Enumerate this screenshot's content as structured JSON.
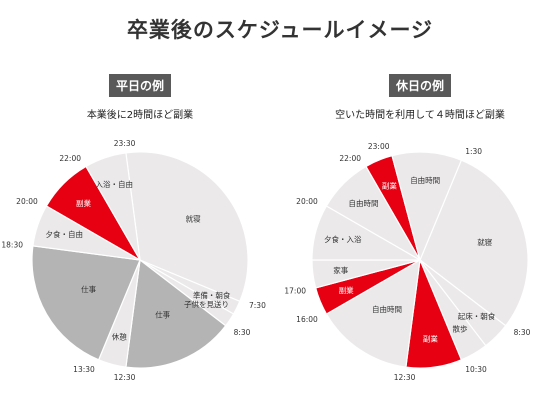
{
  "title": "卒業後のスケジュールイメージ",
  "chart_data": [
    {
      "type": "pie",
      "title": "平日の例",
      "subtitle": "本業後に2時間ほど副業",
      "unit": "hours (24h clock)",
      "segments": [
        {
          "label": "就寝",
          "start": "23:30",
          "end": "07:30",
          "color": "#ebe9ea",
          "text_color": "#333333"
        },
        {
          "label": "準備・朝食",
          "start": "07:30",
          "end": "08:00",
          "color": "#ebe9ea",
          "text_color": "#333333"
        },
        {
          "label": "子供を見送り",
          "start": "08:00",
          "end": "08:30",
          "color": "#ebe9ea",
          "text_color": "#333333"
        },
        {
          "label": "仕事",
          "start": "08:30",
          "end": "12:30",
          "color": "#b4b4b4",
          "text_color": "#333333"
        },
        {
          "label": "休憩",
          "start": "12:30",
          "end": "13:30",
          "color": "#ebe9ea",
          "text_color": "#333333"
        },
        {
          "label": "仕事",
          "start": "13:30",
          "end": "18:30",
          "color": "#b4b4b4",
          "text_color": "#333333"
        },
        {
          "label": "夕食・自由",
          "start": "18:30",
          "end": "20:00",
          "color": "#ebe9ea",
          "text_color": "#333333"
        },
        {
          "label": "副業",
          "start": "20:00",
          "end": "22:00",
          "color": "#e60012",
          "text_color": "#ffffff"
        },
        {
          "label": "入浴・自由",
          "start": "22:00",
          "end": "23:30",
          "color": "#ebe9ea",
          "text_color": "#333333"
        }
      ],
      "time_labels": [
        "23:30",
        "7:30",
        "8:30",
        "12:30",
        "13:30",
        "18:30",
        "20:00",
        "22:00"
      ]
    },
    {
      "type": "pie",
      "title": "休日の例",
      "subtitle": "空いた時間を利用して４時間ほど副業",
      "unit": "hours (24h clock)",
      "segments": [
        {
          "label": "就寝",
          "start": "01:30",
          "end": "08:30",
          "color": "#ebe9ea",
          "text_color": "#333333"
        },
        {
          "label": "起床・朝食",
          "start": "08:30",
          "end": "09:30",
          "color": "#ebe9ea",
          "text_color": "#333333"
        },
        {
          "label": "散歩",
          "start": "09:30",
          "end": "10:30",
          "color": "#ebe9ea",
          "text_color": "#333333"
        },
        {
          "label": "副業",
          "start": "10:30",
          "end": "12:30",
          "color": "#e60012",
          "text_color": "#ffffff"
        },
        {
          "label": "自由時間",
          "start": "12:30",
          "end": "16:00",
          "color": "#ebe9ea",
          "text_color": "#333333"
        },
        {
          "label": "副業",
          "start": "16:00",
          "end": "17:00",
          "color": "#e60012",
          "text_color": "#ffffff"
        },
        {
          "label": "家事",
          "start": "17:00",
          "end": "18:00",
          "color": "#ebe9ea",
          "text_color": "#333333"
        },
        {
          "label": "夕食・入浴",
          "start": "18:00",
          "end": "20:00",
          "color": "#ebe9ea",
          "text_color": "#333333"
        },
        {
          "label": "自由時間",
          "start": "20:00",
          "end": "22:00",
          "color": "#ebe9ea",
          "text_color": "#333333"
        },
        {
          "label": "副業",
          "start": "22:00",
          "end": "23:00",
          "color": "#e60012",
          "text_color": "#ffffff"
        },
        {
          "label": "自由時間",
          "start": "23:00",
          "end": "01:30",
          "color": "#ebe9ea",
          "text_color": "#333333"
        }
      ],
      "time_labels": [
        "1:30",
        "8:30",
        "10:30",
        "12:30",
        "16:00",
        "17:00",
        "20:00",
        "22:00",
        "23:00"
      ]
    }
  ]
}
